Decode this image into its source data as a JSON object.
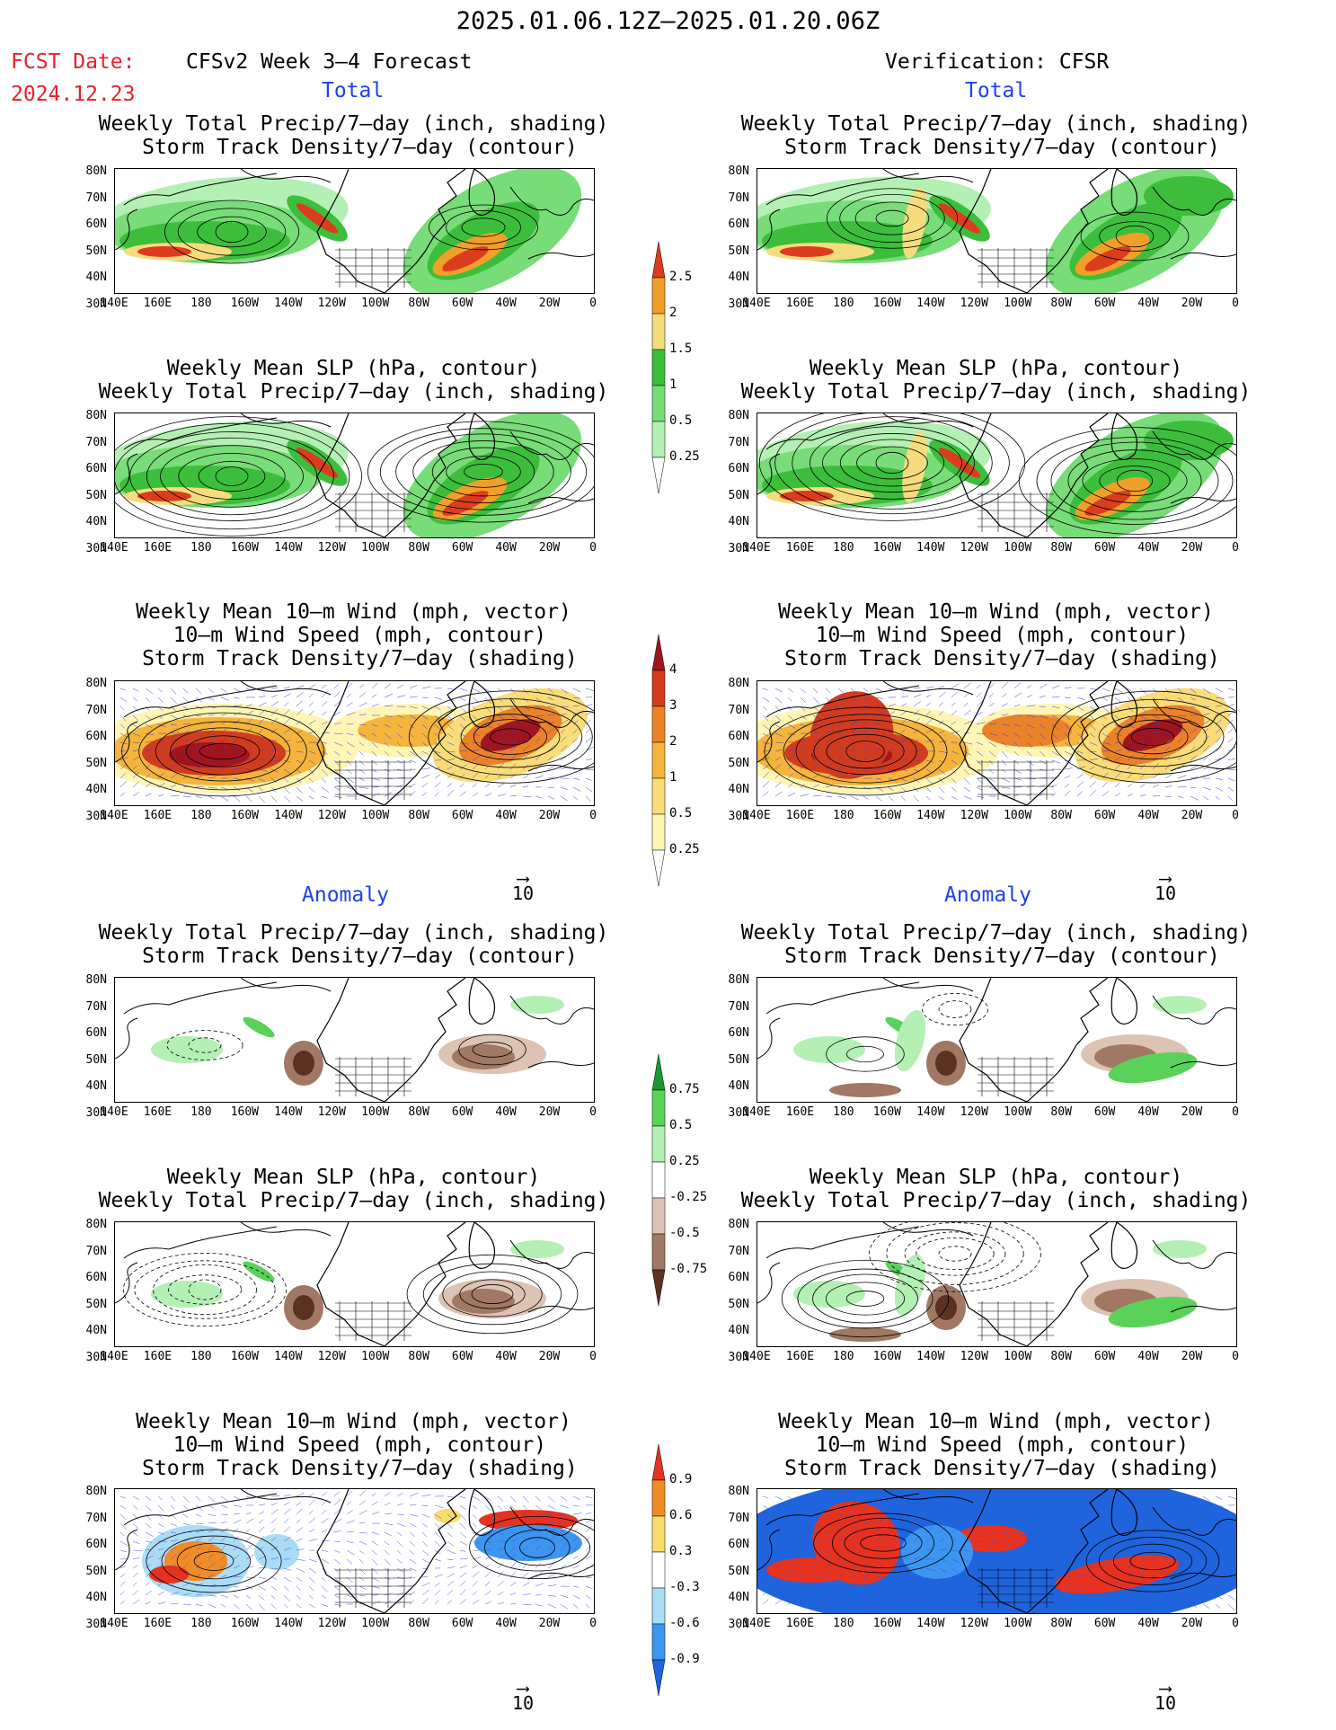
{
  "header": {
    "date_range": "2025.01.06.12Z—2025.01.20.06Z",
    "fcst_label": "FCST Date:",
    "fcst_date": "2024.12.23",
    "left_product": "CFSv2 Week 3—4 Forecast",
    "right_product": "Verification: CFSR",
    "total_label": "Total",
    "anomaly_label": "Anomaly"
  },
  "titles": {
    "precip_storm": "Weekly Total Precip/7—day (inch, shading)\n Storm Track Density/7—day (contour)",
    "slp_precip": "Weekly Mean SLP (hPa, contour)\nWeekly Total Precip/7—day (inch, shading)",
    "wind_storm": "Weekly Mean 10—m Wind (mph, vector)\n 10—m Wind Speed (mph, contour)\n Storm Track Density/7—day (shading)"
  },
  "axes": {
    "lat_labels": [
      "80N",
      "70N",
      "60N",
      "50N",
      "40N",
      "30N"
    ],
    "lon_labels": [
      "140E",
      "160E",
      "180",
      "160W",
      "140W",
      "120W",
      "100W",
      "80W",
      "60W",
      "40W",
      "20W",
      "0"
    ]
  },
  "colorbars": {
    "precip_total": [
      "0.25",
      "0.5",
      "1",
      "1.5",
      "2",
      "2.5"
    ],
    "storm_total": [
      "0.25",
      "0.5",
      "1",
      "2",
      "3",
      "4"
    ],
    "precip_anom": [
      "-0.75",
      "-0.5",
      "-0.25",
      "0.25",
      "0.5",
      "0.75"
    ],
    "storm_anom": [
      "-0.9",
      "-0.6",
      "-0.3",
      "0.3",
      "0.6",
      "0.9"
    ]
  },
  "vector_reference": "10",
  "colors": {
    "precip_scale": [
      "#b4f0b4",
      "#78dc78",
      "#3cbe3c",
      "#f5dc7d",
      "#f0a028",
      "#dc3c1e"
    ],
    "storm_scale": [
      "#fff5b4",
      "#fadc78",
      "#f5b43c",
      "#eb8228",
      "#d23c1e",
      "#a0141e"
    ],
    "precip_anom_scale": [
      "#5a3222",
      "#a07864",
      "#dcc3b4",
      "#b4f0b4",
      "#5ad25a",
      "#1e9632"
    ],
    "storm_anom_scale": [
      "#1e64dc",
      "#3c96f0",
      "#aadcf5",
      "#fadc6e",
      "#f08c28",
      "#e6321e"
    ],
    "red_text": "#e8202a",
    "blue_text": "#2040e8"
  }
}
